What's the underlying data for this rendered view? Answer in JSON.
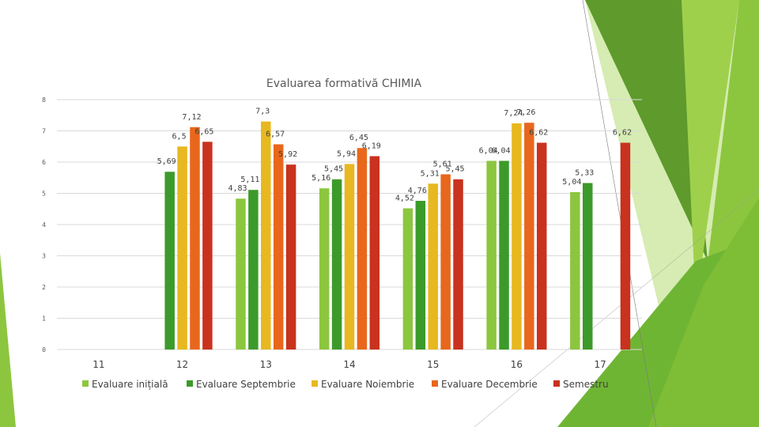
{
  "colors": {
    "initial": "#8cc63f",
    "september": "#3c9a2a",
    "november": "#e8b820",
    "december": "#e8671c",
    "semester": "#c8321e",
    "gridline": "#d9d9d9",
    "deco_dark": "#4e8c24",
    "deco_mid": "#6fb534",
    "deco_light": "#9fd04c",
    "deco_pale": "#d6ecb2"
  },
  "chart_data": {
    "type": "bar",
    "title": "Evaluarea formativă CHIMIA",
    "categories": [
      "11",
      "12",
      "13",
      "14",
      "15",
      "16",
      "17"
    ],
    "ylim": [
      0,
      8
    ],
    "yticks": [
      "0",
      "1",
      "2",
      "3",
      "4",
      "5",
      "6",
      "7",
      "8"
    ],
    "grid": true,
    "legend_position": "bottom",
    "series": [
      {
        "name": "Evaluare inițială",
        "color_key": "initial",
        "values": [
          null,
          null,
          4.83,
          5.16,
          4.52,
          6.04,
          5.04
        ],
        "labels": [
          "",
          "",
          "4,83",
          "5,16",
          "4,52",
          "6,04",
          "5,04"
        ]
      },
      {
        "name": "Evaluare Septembrie",
        "color_key": "september",
        "values": [
          null,
          5.69,
          5.11,
          5.45,
          4.76,
          6.04,
          5.33
        ],
        "labels": [
          "",
          "5,69",
          "5,11",
          "5,45",
          "4,76",
          "6,04",
          "5,33"
        ]
      },
      {
        "name": "Evaluare Noiembrie",
        "color_key": "november",
        "values": [
          null,
          6.5,
          7.3,
          5.94,
          5.31,
          7.24,
          null
        ],
        "labels": [
          "",
          "6,5",
          "7,3",
          "5,94",
          "5,31",
          "7,24",
          ""
        ]
      },
      {
        "name": "Evaluare Decembrie",
        "color_key": "december",
        "values": [
          null,
          7.12,
          6.57,
          6.45,
          5.61,
          7.26,
          null
        ],
        "labels": [
          "",
          "7,12",
          "6,57",
          "6,45",
          "5,61",
          "7,26",
          ""
        ]
      },
      {
        "name": "Semestru",
        "color_key": "semester",
        "values": [
          null,
          6.65,
          5.92,
          6.19,
          5.45,
          6.62,
          6.62
        ],
        "labels": [
          "",
          "6,65",
          "5,92",
          "6,19",
          "5,45",
          "6,62",
          "6,62"
        ]
      }
    ]
  }
}
